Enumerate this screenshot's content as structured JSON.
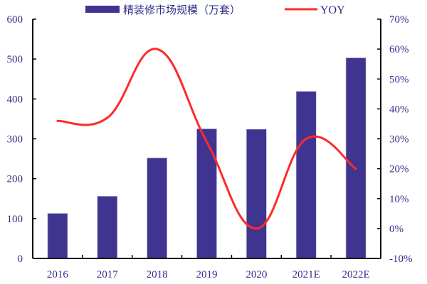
{
  "chart_data": {
    "type": "bar+line",
    "title": "",
    "categories": [
      "2016",
      "2017",
      "2018",
      "2019",
      "2020",
      "2021E",
      "2022E"
    ],
    "series": [
      {
        "name": "精装修市场规模（万套）",
        "type": "bar",
        "axis": "left",
        "color": "#3f3590",
        "values": [
          113,
          156,
          252,
          325,
          324,
          419,
          503
        ]
      },
      {
        "name": "YOY",
        "type": "line",
        "axis": "right",
        "color": "#ff2a2a",
        "values": [
          0.36,
          0.37,
          0.6,
          0.29,
          0.0,
          0.3,
          0.2
        ]
      }
    ],
    "left_axis": {
      "min": 0,
      "max": 600,
      "step": 100,
      "ticks": [
        "0",
        "100",
        "200",
        "300",
        "400",
        "500",
        "600"
      ]
    },
    "right_axis": {
      "min": -0.1,
      "max": 0.7,
      "step": 0.1,
      "ticks": [
        "-10%",
        "0%",
        "10%",
        "20%",
        "30%",
        "40%",
        "50%",
        "60%",
        "70%"
      ]
    },
    "xlabel": "",
    "ylabel": "",
    "ylabel_right": "",
    "grid": false,
    "legend_position": "top"
  },
  "legend": {
    "bar_label": "精装修市场规模（万套）",
    "line_label": "YOY"
  }
}
